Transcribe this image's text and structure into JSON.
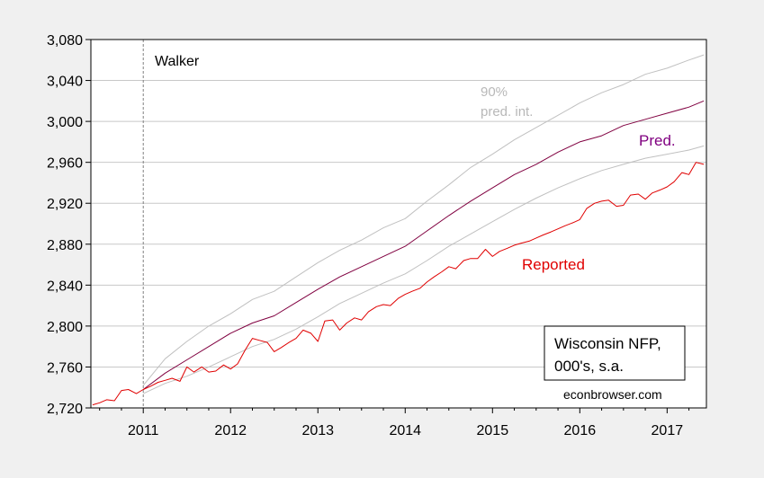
{
  "chart_data": {
    "type": "line",
    "title": "",
    "xlabel": "",
    "ylabel": "",
    "xlim": [
      2010.4,
      2017.45
    ],
    "ylim": [
      2720,
      3080
    ],
    "grid": true,
    "y_ticks": [
      2720,
      2760,
      2800,
      2840,
      2880,
      2920,
      2960,
      3000,
      3040,
      3080
    ],
    "y_tick_labels": [
      "2,720",
      "2,760",
      "2,800",
      "2,840",
      "2,880",
      "2,920",
      "2,960",
      "3,000",
      "3,040",
      "3,080"
    ],
    "x_ticks": [
      2011,
      2012,
      2013,
      2014,
      2015,
      2016,
      2017
    ],
    "x_tick_labels": [
      "2011",
      "2012",
      "2013",
      "2014",
      "2015",
      "2016",
      "2017"
    ],
    "vline": {
      "x": 2011.0,
      "label": "Walker",
      "style": "dashed",
      "color": "#808080"
    },
    "annotations": {
      "pi_line1": "90%",
      "pi_line2": "pred. int.",
      "pred": "Pred.",
      "reported": "Reported",
      "box_line1": "Wisconsin NFP,",
      "box_line2": "000's, s.a.",
      "source": "econbrowser.com"
    },
    "colors": {
      "reported": "#e00000",
      "pred": "#800040",
      "interval": "#c0c0c0",
      "pred_label": "#800080",
      "pi_label": "#b8b8b8",
      "grid": "#c8c8c8"
    },
    "series": [
      {
        "name": "Reported",
        "color": "#e00000",
        "x": [
          2010.42,
          2010.5,
          2010.58,
          2010.67,
          2010.75,
          2010.83,
          2010.92,
          2011.0,
          2011.08,
          2011.17,
          2011.25,
          2011.33,
          2011.42,
          2011.5,
          2011.58,
          2011.67,
          2011.75,
          2011.83,
          2011.92,
          2012.0,
          2012.08,
          2012.17,
          2012.25,
          2012.33,
          2012.42,
          2012.5,
          2012.58,
          2012.67,
          2012.75,
          2012.83,
          2012.92,
          2013.0,
          2013.08,
          2013.17,
          2013.25,
          2013.33,
          2013.42,
          2013.5,
          2013.58,
          2013.67,
          2013.75,
          2013.83,
          2013.92,
          2014.0,
          2014.08,
          2014.17,
          2014.25,
          2014.33,
          2014.42,
          2014.5,
          2014.58,
          2014.67,
          2014.75,
          2014.83,
          2014.92,
          2015.0,
          2015.08,
          2015.17,
          2015.25,
          2015.33,
          2015.42,
          2015.5,
          2015.58,
          2015.67,
          2015.75,
          2015.83,
          2015.92,
          2016.0,
          2016.08,
          2016.17,
          2016.25,
          2016.33,
          2016.42,
          2016.5,
          2016.58,
          2016.67,
          2016.75,
          2016.83,
          2016.92,
          2017.0,
          2017.08,
          2017.17,
          2017.25,
          2017.33,
          2017.42
        ],
        "y": [
          2723,
          2725,
          2728,
          2727,
          2737,
          2738,
          2734,
          2738,
          2741,
          2745,
          2747,
          2749,
          2746,
          2760,
          2755,
          2760,
          2755,
          2756,
          2762,
          2758,
          2763,
          2777,
          2788,
          2786,
          2784,
          2775,
          2779,
          2784,
          2788,
          2796,
          2793,
          2785,
          2805,
          2806,
          2796,
          2803,
          2808,
          2806,
          2814,
          2819,
          2821,
          2820,
          2827,
          2831,
          2834,
          2837,
          2843,
          2848,
          2853,
          2858,
          2856,
          2864,
          2866,
          2866,
          2875,
          2868,
          2873,
          2876,
          2879,
          2881,
          2883,
          2886,
          2889,
          2892,
          2895,
          2898,
          2901,
          2904,
          2915,
          2920,
          2922,
          2923,
          2917,
          2918,
          2928,
          2929,
          2924,
          2930,
          2933,
          2936,
          2941,
          2950,
          2948,
          2960,
          2958
        ]
      },
      {
        "name": "Pred.",
        "color": "#800040",
        "x": [
          2011.0,
          2011.25,
          2011.5,
          2011.75,
          2012.0,
          2012.25,
          2012.5,
          2012.75,
          2013.0,
          2013.25,
          2013.5,
          2013.75,
          2014.0,
          2014.25,
          2014.5,
          2014.75,
          2015.0,
          2015.25,
          2015.5,
          2015.75,
          2016.0,
          2016.25,
          2016.5,
          2016.75,
          2017.0,
          2017.25,
          2017.42
        ],
        "y": [
          2738,
          2754,
          2767,
          2780,
          2793,
          2803,
          2810,
          2823,
          2836,
          2848,
          2858,
          2868,
          2878,
          2893,
          2908,
          2922,
          2935,
          2948,
          2958,
          2970,
          2980,
          2986,
          2996,
          3002,
          3008,
          3014,
          3020
        ]
      },
      {
        "name": "90% pred. int. (upper)",
        "color": "#c0c0c0",
        "x": [
          2011.0,
          2011.25,
          2011.5,
          2011.75,
          2012.0,
          2012.25,
          2012.5,
          2012.75,
          2013.0,
          2013.25,
          2013.5,
          2013.75,
          2014.0,
          2014.25,
          2014.5,
          2014.75,
          2015.0,
          2015.25,
          2015.5,
          2015.75,
          2016.0,
          2016.25,
          2016.5,
          2016.75,
          2017.0,
          2017.25,
          2017.42
        ],
        "y": [
          2742,
          2768,
          2785,
          2800,
          2812,
          2826,
          2834,
          2848,
          2862,
          2874,
          2884,
          2896,
          2905,
          2922,
          2938,
          2955,
          2968,
          2982,
          2994,
          3006,
          3018,
          3028,
          3036,
          3046,
          3052,
          3060,
          3065
        ]
      },
      {
        "name": "90% pred. int. (lower)",
        "color": "#c0c0c0",
        "x": [
          2011.0,
          2011.25,
          2011.5,
          2011.75,
          2012.0,
          2012.25,
          2012.5,
          2012.75,
          2013.0,
          2013.25,
          2013.5,
          2013.75,
          2014.0,
          2014.25,
          2014.5,
          2014.75,
          2015.0,
          2015.25,
          2015.5,
          2015.75,
          2016.0,
          2016.25,
          2016.5,
          2016.75,
          2017.0,
          2017.25,
          2017.42
        ],
        "y": [
          2734,
          2744,
          2751,
          2760,
          2770,
          2780,
          2787,
          2797,
          2809,
          2822,
          2832,
          2842,
          2851,
          2864,
          2878,
          2890,
          2902,
          2914,
          2925,
          2935,
          2944,
          2952,
          2958,
          2964,
          2968,
          2972,
          2976
        ]
      }
    ]
  }
}
